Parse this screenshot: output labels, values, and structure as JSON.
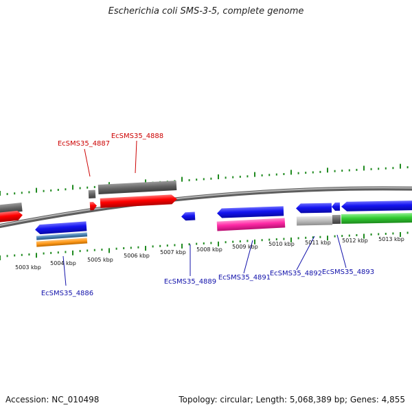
{
  "title": "Escherichia coli SMS-3-5, complete genome",
  "footer": {
    "accession": "Accession: NC_010498",
    "topology": "Topology: circular; Length: 5,068,389 bp; Genes: 4,855"
  },
  "tick_labels": [
    "5003 kbp",
    "5004 kbp",
    "5005 kbp",
    "5006 kbp",
    "5007 kbp",
    "5008 kbp",
    "5009 kbp",
    "5010 kbp",
    "5011 kbp",
    "5012 kbp",
    "5013 kbp"
  ],
  "gene_labels": {
    "g4886": "EcSMS35_4886",
    "g4887": "EcSMS35_4887",
    "g4888": "EcSMS35_4888",
    "g4889": "EcSMS35_4889",
    "g4891": "EcSMS35_4891",
    "g4892": "EcSMS35_4892",
    "g4893": "EcSMS35_4893"
  },
  "colors": {
    "backbone": "#8a8a8a",
    "tick_green": "#1f8a1f",
    "red": "#ff0000",
    "blue": "#1010ee",
    "gray_dark": "#666666",
    "gray_light": "#c0c0c0",
    "magenta": "#ff2aa6",
    "green": "#33cc33",
    "orange": "#ff9a1a",
    "steel": "#4682b4",
    "label_red": "#cc0000",
    "label_blue": "#1010aa"
  }
}
